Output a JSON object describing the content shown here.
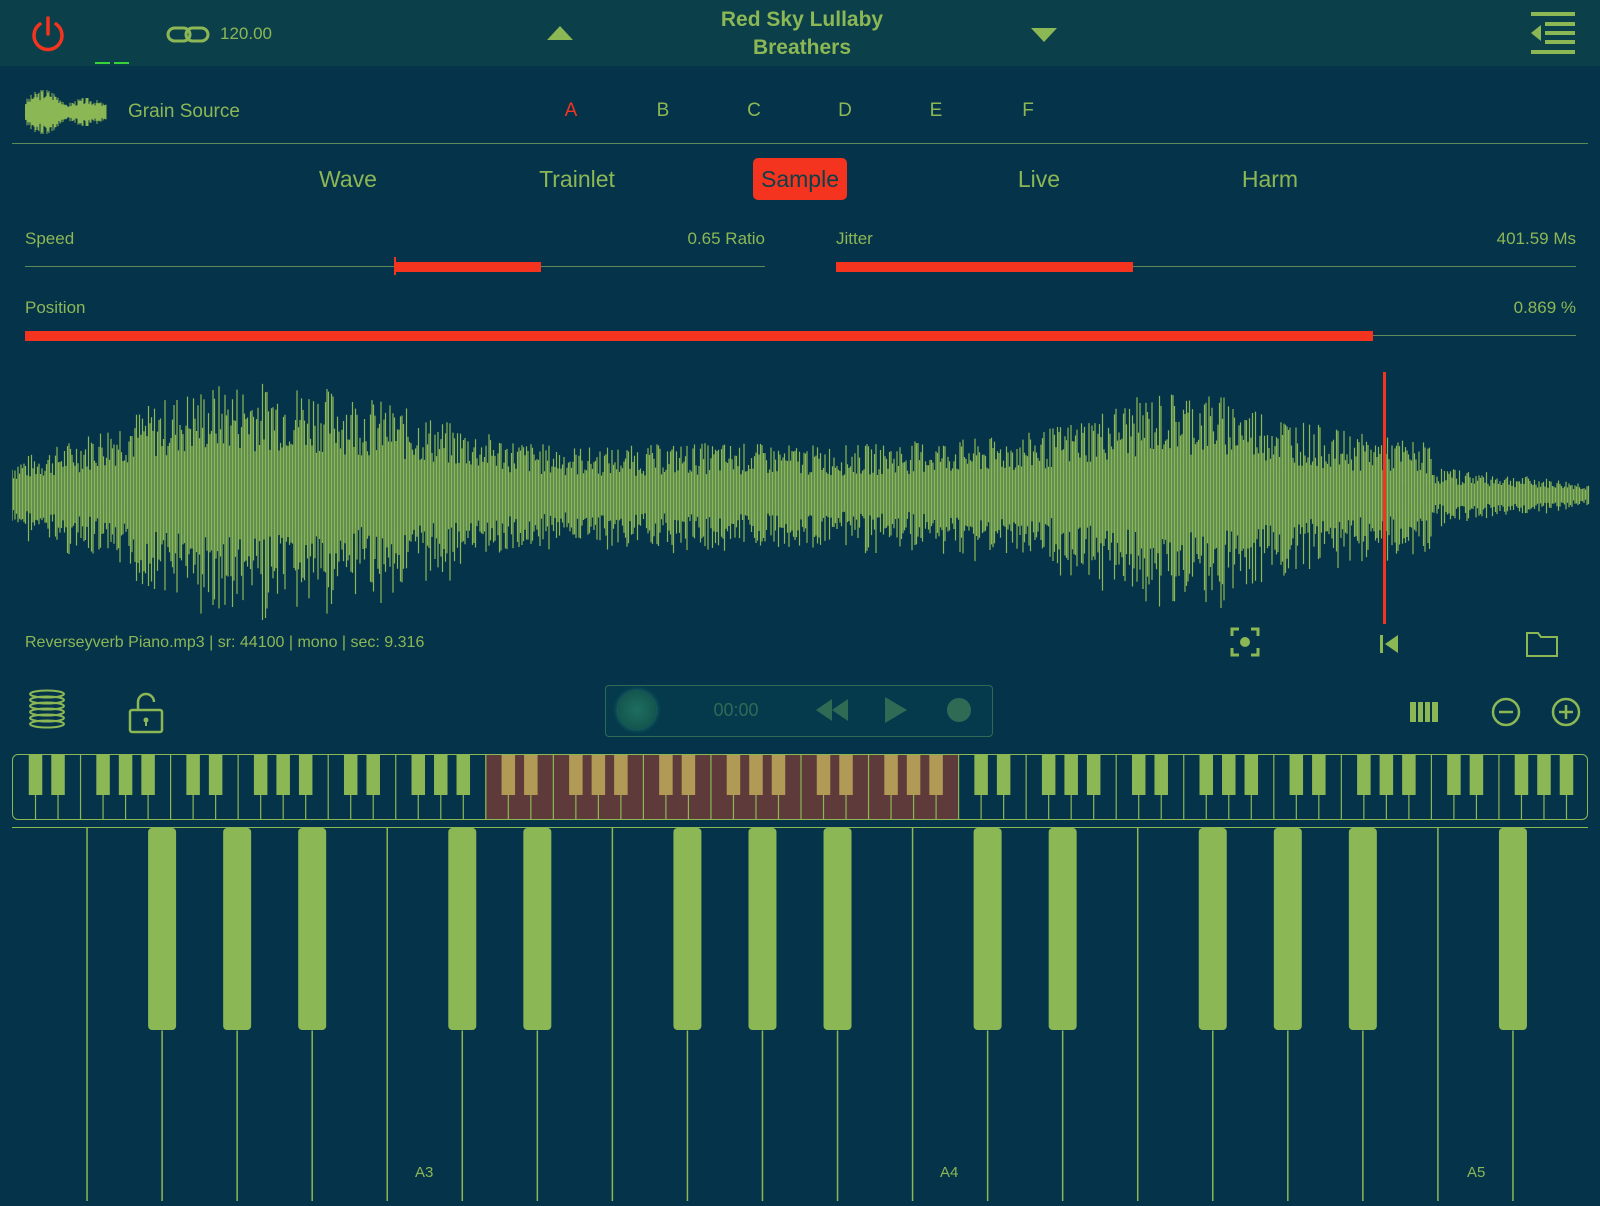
{
  "app": {
    "accent": "#f53420",
    "fg": "#8cb755",
    "bg": "#05334a"
  },
  "header": {
    "tempo": "120.00",
    "preset_name": "Red Sky Lullaby",
    "preset_author": "Breathers"
  },
  "grain_source": {
    "label": "Grain Source",
    "slots": [
      "A",
      "B",
      "C",
      "D",
      "E",
      "F"
    ],
    "active_slot": "A"
  },
  "modes": {
    "tabs": [
      "Wave",
      "Trainlet",
      "Sample",
      "Live",
      "Harm"
    ],
    "active": "Sample"
  },
  "params": {
    "speed": {
      "label": "Speed",
      "value": "0.65 Ratio"
    },
    "jitter": {
      "label": "Jitter",
      "value": "401.59 Ms"
    },
    "position": {
      "label": "Position",
      "value": "0.869 %"
    }
  },
  "sample": {
    "file_info": "Reverseyverb Piano.mp3 | sr: 44100 | mono  | sec: 9.316"
  },
  "transport": {
    "time": "00:00"
  },
  "keyboard": {
    "octave_labels": [
      "A3",
      "A4",
      "A5"
    ]
  },
  "icons": [
    "power-icon",
    "link-icon",
    "arrow-up-icon",
    "arrow-down-icon",
    "menu-icon",
    "waveform-thumb-icon",
    "focus-icon",
    "skip-start-icon",
    "folder-icon",
    "spring-icon",
    "lock-icon",
    "rewind-icon",
    "play-icon",
    "record-icon",
    "keyboard-range-icon",
    "zoom-out-icon",
    "zoom-in-icon"
  ]
}
